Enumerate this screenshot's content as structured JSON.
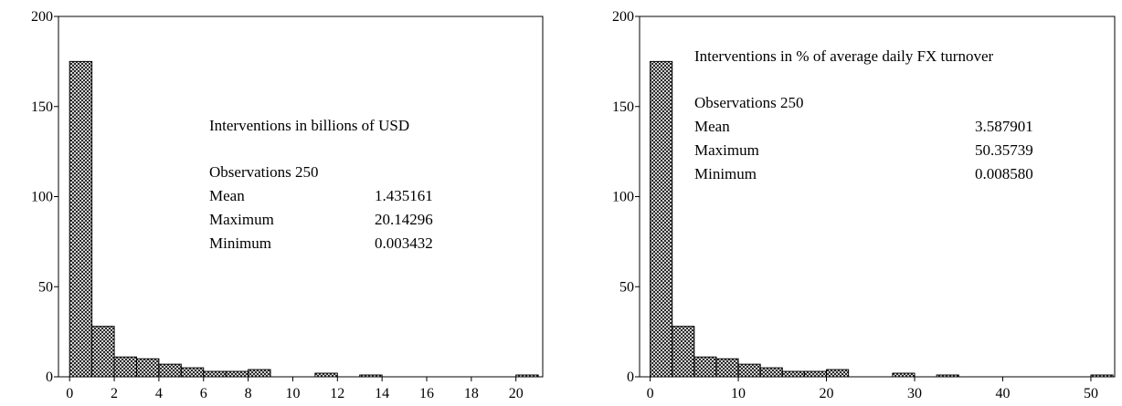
{
  "chart_data": [
    {
      "type": "bar",
      "title": "",
      "xlabel": "",
      "ylabel": "",
      "xlim": [
        -0.5,
        21.2
      ],
      "ylim": [
        0,
        200
      ],
      "x_ticks": [
        0,
        2,
        4,
        6,
        8,
        10,
        12,
        14,
        16,
        18,
        20
      ],
      "y_ticks": [
        0,
        50,
        100,
        150,
        200
      ],
      "bins": [
        {
          "x0": 0,
          "x1": 1,
          "count": 175
        },
        {
          "x0": 1,
          "x1": 2,
          "count": 28
        },
        {
          "x0": 2,
          "x1": 3,
          "count": 11
        },
        {
          "x0": 3,
          "x1": 4,
          "count": 10
        },
        {
          "x0": 4,
          "x1": 5,
          "count": 7
        },
        {
          "x0": 5,
          "x1": 6,
          "count": 5
        },
        {
          "x0": 6,
          "x1": 7,
          "count": 3
        },
        {
          "x0": 7,
          "x1": 8,
          "count": 3
        },
        {
          "x0": 8,
          "x1": 9,
          "count": 4
        },
        {
          "x0": 9,
          "x1": 10,
          "count": 0
        },
        {
          "x0": 10,
          "x1": 11,
          "count": 0
        },
        {
          "x0": 11,
          "x1": 12,
          "count": 2
        },
        {
          "x0": 12,
          "x1": 13,
          "count": 0
        },
        {
          "x0": 13,
          "x1": 14,
          "count": 1
        },
        {
          "x0": 14,
          "x1": 15,
          "count": 0
        },
        {
          "x0": 15,
          "x1": 16,
          "count": 0
        },
        {
          "x0": 16,
          "x1": 17,
          "count": 0
        },
        {
          "x0": 17,
          "x1": 18,
          "count": 0
        },
        {
          "x0": 18,
          "x1": 19,
          "count": 0
        },
        {
          "x0": 19,
          "x1": 20,
          "count": 0
        },
        {
          "x0": 20,
          "x1": 21,
          "count": 1
        }
      ],
      "annotation": {
        "heading": "Interventions in billions of USD",
        "observations": "Observations 250",
        "rows": [
          {
            "label": "Mean",
            "value": "1.435161"
          },
          {
            "label": "Maximum",
            "value": "20.14296"
          },
          {
            "label": "Minimum",
            "value": "0.003432"
          }
        ]
      }
    },
    {
      "type": "bar",
      "title": "",
      "xlabel": "",
      "ylabel": "",
      "xlim": [
        -1.2,
        52.7
      ],
      "ylim": [
        0,
        200
      ],
      "x_ticks": [
        0,
        10,
        20,
        30,
        40,
        50
      ],
      "y_ticks": [
        0,
        50,
        100,
        150,
        200
      ],
      "bins": [
        {
          "x0": 0,
          "x1": 2.5,
          "count": 175
        },
        {
          "x0": 2.5,
          "x1": 5,
          "count": 28
        },
        {
          "x0": 5,
          "x1": 7.5,
          "count": 11
        },
        {
          "x0": 7.5,
          "x1": 10,
          "count": 10
        },
        {
          "x0": 10,
          "x1": 12.5,
          "count": 7
        },
        {
          "x0": 12.5,
          "x1": 15,
          "count": 5
        },
        {
          "x0": 15,
          "x1": 17.5,
          "count": 3
        },
        {
          "x0": 17.5,
          "x1": 20,
          "count": 3
        },
        {
          "x0": 20,
          "x1": 22.5,
          "count": 4
        },
        {
          "x0": 22.5,
          "x1": 25,
          "count": 0
        },
        {
          "x0": 25,
          "x1": 27.5,
          "count": 0
        },
        {
          "x0": 27.5,
          "x1": 30,
          "count": 2
        },
        {
          "x0": 30,
          "x1": 32.5,
          "count": 0
        },
        {
          "x0": 32.5,
          "x1": 35,
          "count": 1
        },
        {
          "x0": 35,
          "x1": 37.5,
          "count": 0
        },
        {
          "x0": 37.5,
          "x1": 40,
          "count": 0
        },
        {
          "x0": 40,
          "x1": 42.5,
          "count": 0
        },
        {
          "x0": 42.5,
          "x1": 45,
          "count": 0
        },
        {
          "x0": 45,
          "x1": 47.5,
          "count": 0
        },
        {
          "x0": 47.5,
          "x1": 50,
          "count": 0
        },
        {
          "x0": 50,
          "x1": 52.5,
          "count": 1
        }
      ],
      "annotation": {
        "heading": "Interventions in % of average daily FX turnover",
        "observations": "Observations 250",
        "rows": [
          {
            "label": "Mean",
            "value": "3.587901"
          },
          {
            "label": "Maximum",
            "value": "50.35739"
          },
          {
            "label": "Minimum",
            "value": "0.008580"
          }
        ]
      }
    }
  ]
}
